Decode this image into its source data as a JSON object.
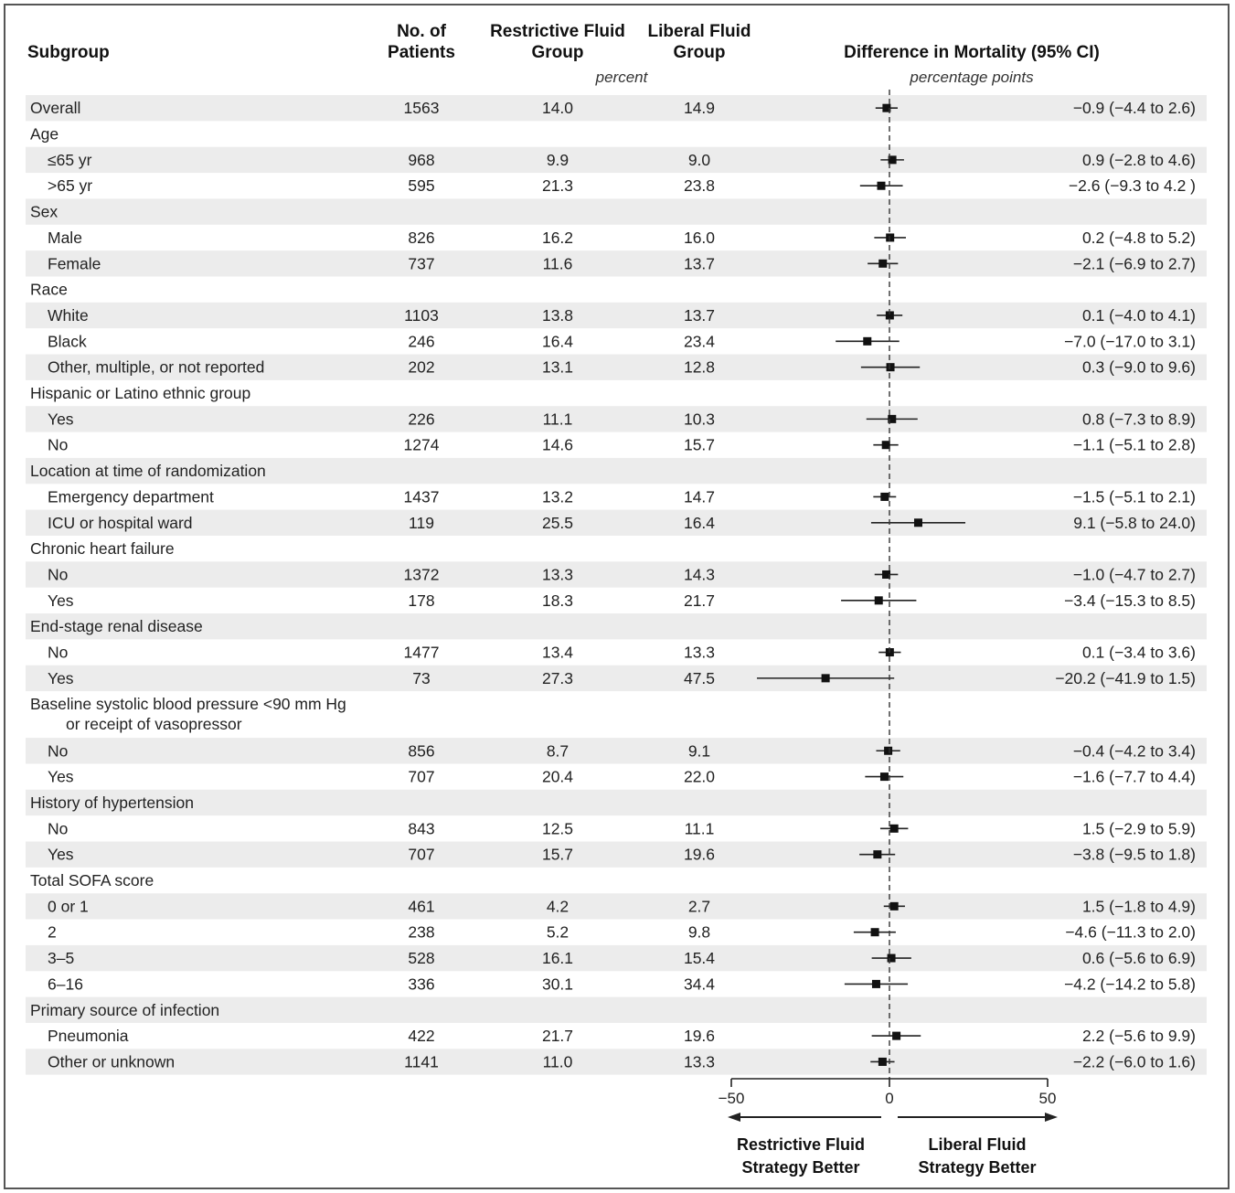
{
  "headers": {
    "subgroup": "Subgroup",
    "patients": [
      "No. of",
      "Patients"
    ],
    "restrictive": [
      "Restrictive Fluid",
      "Group"
    ],
    "liberal": [
      "Liberal Fluid",
      "Group"
    ],
    "percent_note": "percent",
    "difference": "Difference in Mortality (95% CI)",
    "difference_unit": "percentage points"
  },
  "arrows": {
    "left": [
      "Restrictive Fluid",
      "Strategy Better"
    ],
    "right": [
      "Liberal Fluid",
      "Strategy Better"
    ]
  },
  "chart_data": {
    "type": "forest",
    "xlim": [
      -50,
      50
    ],
    "ticks": [
      "−50",
      "0",
      "50"
    ],
    "reference_line": 0,
    "rows": [
      {
        "label": "Overall",
        "indent": 0,
        "n": "1563",
        "restrictive": "14.0",
        "liberal": "14.9",
        "est": -0.9,
        "lo": -4.4,
        "hi": 2.6,
        "ci": "−0.9 (−4.4 to 2.6)"
      },
      {
        "label": "Age",
        "indent": 0,
        "header": true
      },
      {
        "label": "≤65 yr",
        "indent": 1,
        "n": "968",
        "restrictive": "9.9",
        "liberal": "9.0",
        "est": 0.9,
        "lo": -2.8,
        "hi": 4.6,
        "ci": "0.9 (−2.8 to 4.6)"
      },
      {
        "label": ">65 yr",
        "indent": 1,
        "n": "595",
        "restrictive": "21.3",
        "liberal": "23.8",
        "est": -2.6,
        "lo": -9.3,
        "hi": 4.2,
        "ci": "−2.6 (−9.3 to 4.2 )"
      },
      {
        "label": "Sex",
        "indent": 0,
        "header": true
      },
      {
        "label": "Male",
        "indent": 1,
        "n": "826",
        "restrictive": "16.2",
        "liberal": "16.0",
        "est": 0.2,
        "lo": -4.8,
        "hi": 5.2,
        "ci": "0.2 (−4.8 to 5.2)"
      },
      {
        "label": "Female",
        "indent": 1,
        "n": "737",
        "restrictive": "11.6",
        "liberal": "13.7",
        "est": -2.1,
        "lo": -6.9,
        "hi": 2.7,
        "ci": "−2.1 (−6.9 to 2.7)"
      },
      {
        "label": "Race",
        "indent": 0,
        "header": true
      },
      {
        "label": "White",
        "indent": 1,
        "n": "1103",
        "restrictive": "13.8",
        "liberal": "13.7",
        "est": 0.1,
        "lo": -4.0,
        "hi": 4.1,
        "ci": "0.1 (−4.0 to 4.1)"
      },
      {
        "label": "Black",
        "indent": 1,
        "n": "246",
        "restrictive": "16.4",
        "liberal": "23.4",
        "est": -7.0,
        "lo": -17.0,
        "hi": 3.1,
        "ci": "−7.0 (−17.0 to 3.1)"
      },
      {
        "label": "Other, multiple, or not reported",
        "indent": 1,
        "n": "202",
        "restrictive": "13.1",
        "liberal": "12.8",
        "est": 0.3,
        "lo": -9.0,
        "hi": 9.6,
        "ci": "0.3 (−9.0 to 9.6)"
      },
      {
        "label": "Hispanic or Latino ethnic group",
        "indent": 0,
        "header": true
      },
      {
        "label": "Yes",
        "indent": 1,
        "n": "226",
        "restrictive": "11.1",
        "liberal": "10.3",
        "est": 0.8,
        "lo": -7.3,
        "hi": 8.9,
        "ci": "0.8 (−7.3 to 8.9)"
      },
      {
        "label": "No",
        "indent": 1,
        "n": "1274",
        "restrictive": "14.6",
        "liberal": "15.7",
        "est": -1.1,
        "lo": -5.1,
        "hi": 2.8,
        "ci": "−1.1 (−5.1 to 2.8)"
      },
      {
        "label": "Location at time of randomization",
        "indent": 0,
        "header": true
      },
      {
        "label": "Emergency department",
        "indent": 1,
        "n": "1437",
        "restrictive": "13.2",
        "liberal": "14.7",
        "est": -1.5,
        "lo": -5.1,
        "hi": 2.1,
        "ci": "−1.5 (−5.1 to 2.1)"
      },
      {
        "label": "ICU or hospital ward",
        "indent": 1,
        "n": "119",
        "restrictive": "25.5",
        "liberal": "16.4",
        "est": 9.1,
        "lo": -5.8,
        "hi": 24.0,
        "ci": "9.1 (−5.8 to 24.0)"
      },
      {
        "label": "Chronic heart failure",
        "indent": 0,
        "header": true
      },
      {
        "label": "No",
        "indent": 1,
        "n": "1372",
        "restrictive": "13.3",
        "liberal": "14.3",
        "est": -1.0,
        "lo": -4.7,
        "hi": 2.7,
        "ci": "−1.0 (−4.7 to 2.7)"
      },
      {
        "label": "Yes",
        "indent": 1,
        "n": "178",
        "restrictive": "18.3",
        "liberal": "21.7",
        "est": -3.4,
        "lo": -15.3,
        "hi": 8.5,
        "ci": "−3.4 (−15.3 to 8.5)"
      },
      {
        "label": "End-stage renal disease",
        "indent": 0,
        "header": true
      },
      {
        "label": "No",
        "indent": 1,
        "n": "1477",
        "restrictive": "13.4",
        "liberal": "13.3",
        "est": 0.1,
        "lo": -3.4,
        "hi": 3.6,
        "ci": "0.1 (−3.4 to 3.6)"
      },
      {
        "label": "Yes",
        "indent": 1,
        "n": "73",
        "restrictive": "27.3",
        "liberal": "47.5",
        "est": -20.2,
        "lo": -41.9,
        "hi": 1.5,
        "ci": "−20.2 (−41.9 to 1.5)"
      },
      {
        "label": "Baseline systolic blood pressure <90 mm Hg",
        "label2": "or receipt of vasopressor",
        "indent": 0,
        "header": true
      },
      {
        "label": "No",
        "indent": 1,
        "n": "856",
        "restrictive": "8.7",
        "liberal": "9.1",
        "est": -0.4,
        "lo": -4.2,
        "hi": 3.4,
        "ci": "−0.4 (−4.2 to 3.4)"
      },
      {
        "label": "Yes",
        "indent": 1,
        "n": "707",
        "restrictive": "20.4",
        "liberal": "22.0",
        "est": -1.6,
        "lo": -7.7,
        "hi": 4.4,
        "ci": "−1.6 (−7.7 to 4.4)"
      },
      {
        "label": "History of hypertension",
        "indent": 0,
        "header": true
      },
      {
        "label": "No",
        "indent": 1,
        "n": "843",
        "restrictive": "12.5",
        "liberal": "11.1",
        "est": 1.5,
        "lo": -2.9,
        "hi": 5.9,
        "ci": "1.5 (−2.9 to 5.9)"
      },
      {
        "label": "Yes",
        "indent": 1,
        "n": "707",
        "restrictive": "15.7",
        "liberal": "19.6",
        "est": -3.8,
        "lo": -9.5,
        "hi": 1.8,
        "ci": "−3.8 (−9.5 to 1.8)"
      },
      {
        "label": "Total SOFA score",
        "indent": 0,
        "header": true
      },
      {
        "label": "0 or 1",
        "indent": 1,
        "n": "461",
        "restrictive": "4.2",
        "liberal": "2.7",
        "est": 1.5,
        "lo": -1.8,
        "hi": 4.9,
        "ci": "1.5 (−1.8 to 4.9)"
      },
      {
        "label": "2",
        "indent": 1,
        "n": "238",
        "restrictive": "5.2",
        "liberal": "9.8",
        "est": -4.6,
        "lo": -11.3,
        "hi": 2.0,
        "ci": "−4.6 (−11.3 to 2.0)"
      },
      {
        "label": "3–5",
        "indent": 1,
        "n": "528",
        "restrictive": "16.1",
        "liberal": "15.4",
        "est": 0.6,
        "lo": -5.6,
        "hi": 6.9,
        "ci": "0.6 (−5.6 to 6.9)"
      },
      {
        "label": "6–16",
        "indent": 1,
        "n": "336",
        "restrictive": "30.1",
        "liberal": "34.4",
        "est": -4.2,
        "lo": -14.2,
        "hi": 5.8,
        "ci": "−4.2 (−14.2 to 5.8)"
      },
      {
        "label": "Primary source of infection",
        "indent": 0,
        "header": true
      },
      {
        "label": "Pneumonia",
        "indent": 1,
        "n": "422",
        "restrictive": "21.7",
        "liberal": "19.6",
        "est": 2.2,
        "lo": -5.6,
        "hi": 9.9,
        "ci": "2.2 (−5.6 to 9.9)"
      },
      {
        "label": "Other or unknown",
        "indent": 1,
        "n": "1141",
        "restrictive": "11.0",
        "liberal": "13.3",
        "est": -2.2,
        "lo": -6.0,
        "hi": 1.6,
        "ci": "−2.2 (−6.0 to 1.6)"
      }
    ]
  }
}
